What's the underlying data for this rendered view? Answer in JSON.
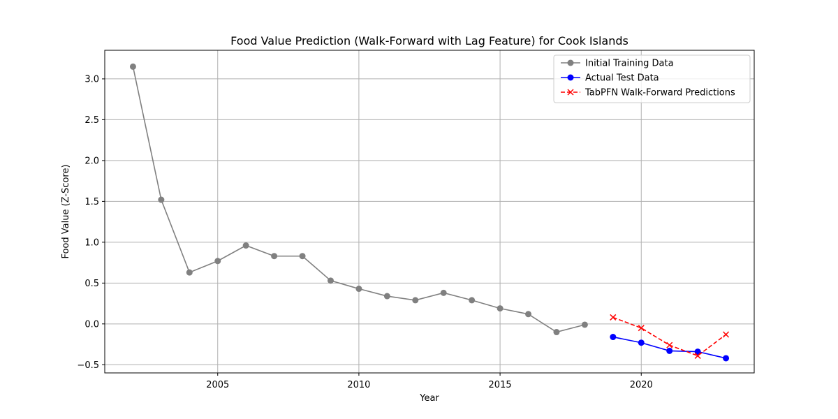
{
  "chart_data": {
    "type": "line",
    "title": "Food Value Prediction (Walk-Forward with Lag Feature) for Cook Islands",
    "xlabel": "Year",
    "ylabel": "Food Value (Z-Score)",
    "xlim": [
      2001,
      2024
    ],
    "ylim": [
      -0.6,
      3.35
    ],
    "x_ticks": [
      2005,
      2010,
      2015,
      2020
    ],
    "y_ticks": [
      -0.5,
      0.0,
      0.5,
      1.0,
      1.5,
      2.0,
      2.5,
      3.0
    ],
    "y_tick_labels": [
      "−0.5",
      "0.0",
      "0.5",
      "1.0",
      "1.5",
      "2.0",
      "2.5",
      "3.0"
    ],
    "grid": true,
    "legend_position": "top-right",
    "series": [
      {
        "name": "Initial Training Data",
        "color": "#808080",
        "marker": "circle",
        "linestyle": "solid",
        "x": [
          2002,
          2003,
          2004,
          2005,
          2006,
          2007,
          2008,
          2009,
          2010,
          2011,
          2012,
          2013,
          2014,
          2015,
          2016,
          2017,
          2018
        ],
        "values": [
          3.15,
          1.52,
          0.63,
          0.77,
          0.96,
          0.83,
          0.83,
          0.53,
          0.43,
          0.34,
          0.29,
          0.38,
          0.29,
          0.19,
          0.12,
          -0.1,
          -0.01
        ]
      },
      {
        "name": "Actual Test Data",
        "color": "#0000ff",
        "marker": "circle",
        "linestyle": "solid",
        "x": [
          2019,
          2020,
          2021,
          2022,
          2023
        ],
        "values": [
          -0.16,
          -0.23,
          -0.33,
          -0.34,
          -0.42
        ]
      },
      {
        "name": "TabPFN Walk-Forward Predictions",
        "color": "#ff0000",
        "marker": "x",
        "linestyle": "dashed",
        "x": [
          2019,
          2020,
          2021,
          2022,
          2023
        ],
        "values": [
          0.08,
          -0.05,
          -0.26,
          -0.39,
          -0.13
        ]
      }
    ]
  }
}
